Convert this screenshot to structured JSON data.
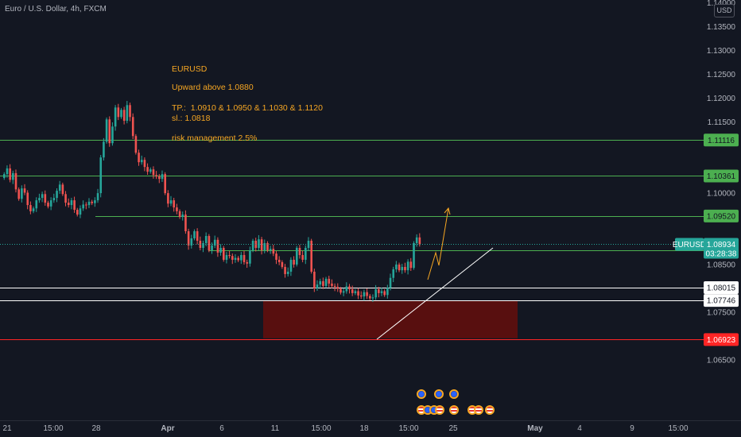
{
  "header": {
    "symbol_legend": "Euro / U.S. Dollar, 4h, FXCM",
    "currency": "USD"
  },
  "notes": {
    "title": "EURUSD",
    "line1": "Upward above 1.0880",
    "line2": "TP.:  1.0910 & 1.0950 & 1.1030 & 1.1120",
    "line3": "sl.: 1.0818",
    "line4": "risk management 2.5%"
  },
  "colors": {
    "background": "#131722",
    "up": "#26a69a",
    "down": "#ef5350",
    "level_green": "#4caf50",
    "level_red": "#ff2525",
    "note": "#f5a623"
  },
  "chart_data": {
    "type": "candlestick",
    "symbol": "EURUSD",
    "timeframe": "4h",
    "ylim": [
      1.0625,
      1.1435
    ],
    "y_ticks": [
      "1.14000",
      "1.13500",
      "1.13000",
      "1.12500",
      "1.12000",
      "1.11500",
      "1.11000",
      "1.10500",
      "1.10000",
      "1.09500",
      "1.09000",
      "1.08500",
      "1.08000",
      "1.07500",
      "1.07000",
      "1.06500"
    ],
    "x_ticks": [
      "21",
      "15:00",
      "28",
      "Apr",
      "6",
      "11",
      "15:00",
      "18",
      "15:00",
      "25",
      "May",
      "4",
      "9",
      "15:00"
    ],
    "last_price": {
      "label": "EURUSD",
      "value": "1.08934",
      "countdown": "03:28:38"
    },
    "horizontal_levels": [
      {
        "value": 1.11116,
        "label": "1.11116",
        "color": "#4caf50"
      },
      {
        "value": 1.10361,
        "label": "1.10361",
        "color": "#4caf50"
      },
      {
        "value": 1.0952,
        "label": "1.09520",
        "color": "#4caf50"
      },
      {
        "value": 1.08793,
        "label": "1.08793",
        "color": "#4caf50"
      },
      {
        "value": 1.08015,
        "label": "1.08015",
        "color": "#ffffff"
      },
      {
        "value": 1.07746,
        "label": "1.07746",
        "color": "#ffffff"
      },
      {
        "value": 1.06923,
        "label": "1.06923",
        "color": "#ff2525"
      }
    ],
    "stop_zone": {
      "top": 1.0774,
      "bottom": 1.0695
    },
    "closes": [
      1.104,
      1.1052,
      1.1028,
      1.1042,
      1.1008,
      1.0988,
      1.101,
      1.1001,
      1.0975,
      1.0962,
      1.0968,
      1.0985,
      1.099,
      1.0998,
      1.098,
      1.0972,
      1.0985,
      1.099,
      1.1005,
      1.1018,
      1.0998,
      1.098,
      1.0975,
      1.0985,
      1.0965,
      1.0955,
      1.0968,
      1.0976,
      1.0975,
      1.0982,
      1.0979,
      1.0985,
      1.1,
      1.1075,
      1.1108,
      1.1155,
      1.1105,
      1.114,
      1.118,
      1.116,
      1.1175,
      1.1152,
      1.1185,
      1.116,
      1.112,
      1.1085,
      1.1065,
      1.107,
      1.1055,
      1.1045,
      1.105,
      1.1038,
      1.1035,
      1.103,
      1.104,
      1.1,
      1.0978,
      1.0985,
      1.097,
      1.0962,
      1.095,
      1.0955,
      1.092,
      1.089,
      1.0905,
      1.092,
      1.09,
      1.0885,
      1.0895,
      1.091,
      1.088,
      1.089,
      1.0902,
      1.0875,
      1.0885,
      1.086,
      1.087,
      1.0868,
      1.086,
      1.0864,
      1.0859,
      1.087,
      1.0855,
      1.0852,
      1.088,
      1.09,
      1.0885,
      1.0903,
      1.088,
      1.0895,
      1.088,
      1.0883,
      1.0873,
      1.086,
      1.0855,
      1.0845,
      1.083,
      1.0835,
      1.086,
      1.085,
      1.0885,
      1.087,
      1.086,
      1.0885,
      1.09,
      1.0835,
      1.08,
      1.0808,
      1.0815,
      1.0805,
      1.082,
      1.081,
      1.0805,
      1.0803,
      1.0799,
      1.0791,
      1.0794,
      1.0804,
      1.0798,
      1.079,
      1.0794,
      1.0785,
      1.0783,
      1.0792,
      1.0784,
      1.0779,
      1.0781,
      1.0798,
      1.079,
      1.0794,
      1.0786,
      1.0801,
      1.0822,
      1.084,
      1.085,
      1.0838,
      1.0845,
      1.0838,
      1.0856,
      1.0843,
      1.0895,
      1.0907,
      1.0893
    ]
  }
}
